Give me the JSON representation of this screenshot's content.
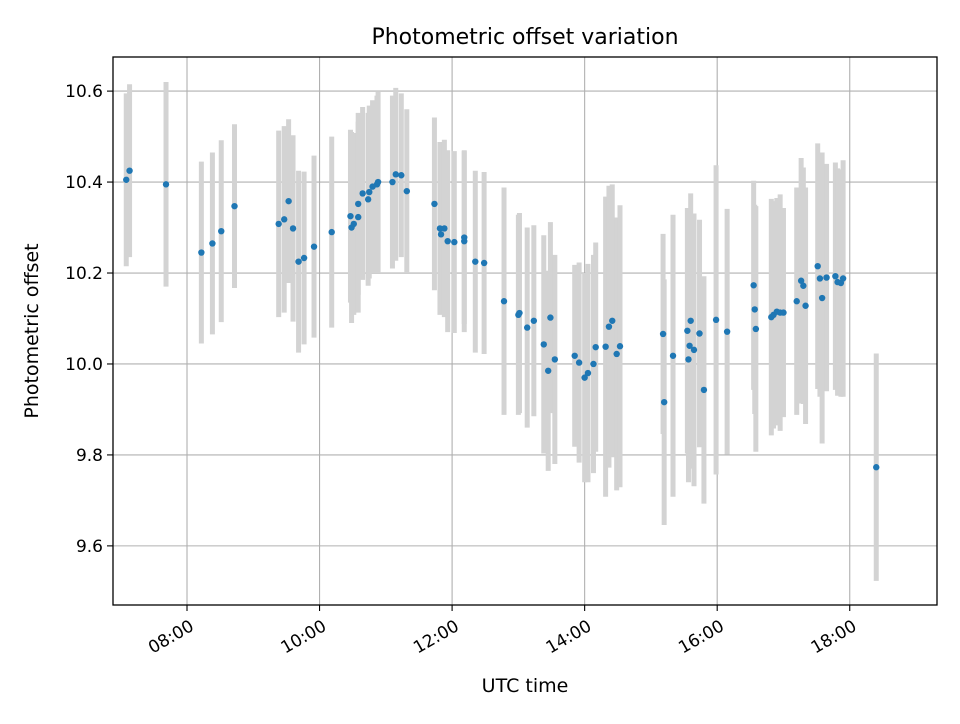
{
  "chart_data": {
    "type": "scatter",
    "title": "Photometric offset variation",
    "xlabel": "UTC time",
    "ylabel": "Photometric offset",
    "x_tick_labels": [
      "08:00",
      "10:00",
      "12:00",
      "14:00",
      "16:00",
      "18:00"
    ],
    "y_tick_labels": [
      "9.6",
      "9.8",
      "10.0",
      "10.2",
      "10.4",
      "10.6"
    ],
    "y_ticks": [
      9.6,
      9.8,
      10.0,
      10.2,
      10.4,
      10.6
    ],
    "xlim": [
      "06:53",
      "19:19"
    ],
    "ylim": [
      9.47,
      10.675
    ],
    "grid": true,
    "marker_color": "#1f77b4",
    "errorbar_color": "#d3d3d3",
    "series": [
      {
        "x": [
          "07:05",
          "07:08",
          "07:41",
          "08:13",
          "08:23",
          "08:31",
          "08:43",
          "09:23",
          "09:28",
          "09:32",
          "09:36",
          "09:41",
          "09:46",
          "09:55",
          "10:11",
          "10:28",
          "10:29",
          "10:31",
          "10:35",
          "10:35",
          "10:39",
          "10:44",
          "10:45",
          "10:48",
          "10:52",
          "10:53",
          "11:06",
          "11:09",
          "11:14",
          "11:19",
          "11:44",
          "11:49",
          "11:50",
          "11:53",
          "11:56",
          "12:02",
          "12:11",
          "12:11",
          "12:21",
          "12:29",
          "12:47",
          "13:00",
          "13:01",
          "13:08",
          "13:14",
          "13:23",
          "13:27",
          "13:29",
          "13:33",
          "13:51",
          "13:55",
          "14:00",
          "14:03",
          "14:08",
          "14:10",
          "14:19",
          "14:22",
          "14:25",
          "14:29",
          "14:32",
          "15:11",
          "15:12",
          "15:20",
          "15:33",
          "15:34",
          "15:35",
          "15:36",
          "15:39",
          "15:44",
          "15:48",
          "15:59",
          "16:09",
          "16:33",
          "16:34",
          "16:35",
          "16:49",
          "16:51",
          "16:54",
          "16:57",
          "17:00",
          "17:12",
          "17:16",
          "17:18",
          "17:20",
          "17:31",
          "17:33",
          "17:35",
          "17:39",
          "17:47",
          "17:49",
          "17:52",
          "17:54",
          "18:24"
        ],
        "y": [
          10.405,
          10.425,
          10.395,
          10.245,
          10.265,
          10.292,
          10.347,
          10.308,
          10.318,
          10.358,
          10.298,
          10.225,
          10.233,
          10.258,
          10.29,
          10.325,
          10.3,
          10.308,
          10.323,
          10.352,
          10.375,
          10.362,
          10.378,
          10.39,
          10.395,
          10.4,
          10.4,
          10.417,
          10.415,
          10.38,
          10.352,
          10.298,
          10.285,
          10.298,
          10.27,
          10.268,
          10.278,
          10.27,
          10.225,
          10.222,
          10.138,
          10.108,
          10.112,
          10.08,
          10.095,
          10.043,
          9.985,
          10.102,
          10.01,
          10.018,
          10.003,
          9.97,
          9.98,
          10.0,
          10.037,
          10.038,
          10.082,
          10.095,
          10.022,
          10.039,
          10.066,
          9.916,
          10.018,
          10.073,
          10.01,
          10.04,
          10.095,
          10.031,
          10.067,
          9.943,
          10.097,
          10.071,
          10.173,
          10.12,
          10.077,
          10.103,
          10.108,
          10.115,
          10.113,
          10.113,
          10.138,
          10.183,
          10.172,
          10.128,
          10.215,
          10.188,
          10.145,
          10.19,
          10.193,
          10.18,
          10.178,
          10.188,
          9.773
        ],
        "yerr": [
          0.19,
          0.19,
          0.225,
          0.2,
          0.2,
          0.2,
          0.18,
          0.205,
          0.205,
          0.18,
          0.205,
          0.2,
          0.19,
          0.2,
          0.21,
          0.19,
          0.21,
          0.2,
          0.21,
          0.2,
          0.19,
          0.19,
          0.19,
          0.19,
          0.195,
          0.2,
          0.19,
          0.19,
          0.18,
          0.18,
          0.19,
          0.19,
          0.175,
          0.195,
          0.2,
          0.2,
          0.19,
          0.2,
          0.2,
          0.2,
          0.25,
          0.22,
          0.22,
          0.22,
          0.21,
          0.24,
          0.22,
          0.21,
          0.23,
          0.2,
          0.22,
          0.23,
          0.24,
          0.24,
          0.23,
          0.33,
          0.31,
          0.3,
          0.3,
          0.31,
          0.22,
          0.27,
          0.31,
          0.27,
          0.27,
          0.27,
          0.28,
          0.3,
          0.25,
          0.25,
          0.34,
          0.27,
          0.23,
          0.23,
          0.27,
          0.26,
          0.25,
          0.25,
          0.26,
          0.23,
          0.25,
          0.27,
          0.26,
          0.26,
          0.27,
          0.26,
          0.32,
          0.25,
          0.25,
          0.25,
          0.25,
          0.26,
          0.25
        ]
      }
    ]
  }
}
